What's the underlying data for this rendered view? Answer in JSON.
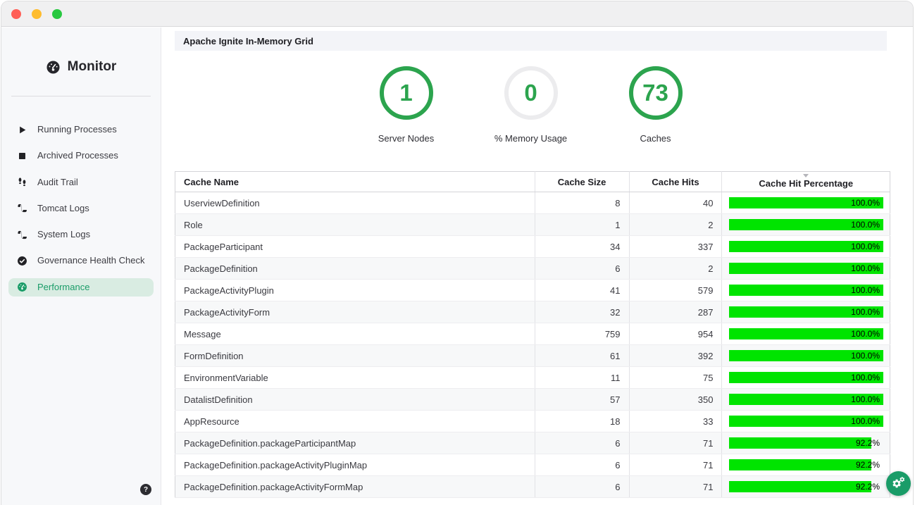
{
  "window": {
    "buttons": {
      "close": "close",
      "minimize": "minimize",
      "zoom": "zoom"
    }
  },
  "sidebar": {
    "brand": "Monitor",
    "brand_icon": "gauge-icon",
    "items": [
      {
        "label": "Running Processes",
        "icon": "play-icon",
        "selected": false
      },
      {
        "label": "Archived Processes",
        "icon": "stop-icon",
        "selected": false
      },
      {
        "label": "Audit Trail",
        "icon": "footprints-icon",
        "selected": false
      },
      {
        "label": "Tomcat Logs",
        "icon": "scroll-icon",
        "selected": false
      },
      {
        "label": "System Logs",
        "icon": "scroll-icon",
        "selected": false
      },
      {
        "label": "Governance Health Check",
        "icon": "check-circle-icon",
        "selected": false
      },
      {
        "label": "Performance",
        "icon": "gauge-icon",
        "selected": true
      }
    ],
    "help_label": "?"
  },
  "main": {
    "section_title": "Apache Ignite In-Memory Grid",
    "stats": [
      {
        "value": "1",
        "label": "Server Nodes",
        "ring": "green"
      },
      {
        "value": "0",
        "label": "% Memory Usage",
        "ring": "gray"
      },
      {
        "value": "73",
        "label": "Caches",
        "ring": "green"
      }
    ],
    "table": {
      "columns": [
        "Cache Name",
        "Cache Size",
        "Cache Hits",
        "Cache Hit Percentage"
      ],
      "sorted_column_index": 3,
      "sort_direction": "desc",
      "rows": [
        {
          "name": "UserviewDefinition",
          "size": "8",
          "hits": "40",
          "pct_label": "100.0%",
          "pct_value": 100.0
        },
        {
          "name": "Role",
          "size": "1",
          "hits": "2",
          "pct_label": "100.0%",
          "pct_value": 100.0
        },
        {
          "name": "PackageParticipant",
          "size": "34",
          "hits": "337",
          "pct_label": "100.0%",
          "pct_value": 100.0
        },
        {
          "name": "PackageDefinition",
          "size": "6",
          "hits": "2",
          "pct_label": "100.0%",
          "pct_value": 100.0
        },
        {
          "name": "PackageActivityPlugin",
          "size": "41",
          "hits": "579",
          "pct_label": "100.0%",
          "pct_value": 100.0
        },
        {
          "name": "PackageActivityForm",
          "size": "32",
          "hits": "287",
          "pct_label": "100.0%",
          "pct_value": 100.0
        },
        {
          "name": "Message",
          "size": "759",
          "hits": "954",
          "pct_label": "100.0%",
          "pct_value": 100.0
        },
        {
          "name": "FormDefinition",
          "size": "61",
          "hits": "392",
          "pct_label": "100.0%",
          "pct_value": 100.0
        },
        {
          "name": "EnvironmentVariable",
          "size": "11",
          "hits": "75",
          "pct_label": "100.0%",
          "pct_value": 100.0
        },
        {
          "name": "DatalistDefinition",
          "size": "57",
          "hits": "350",
          "pct_label": "100.0%",
          "pct_value": 100.0
        },
        {
          "name": "AppResource",
          "size": "18",
          "hits": "33",
          "pct_label": "100.0%",
          "pct_value": 100.0
        },
        {
          "name": "PackageDefinition.packageParticipantMap",
          "size": "6",
          "hits": "71",
          "pct_label": "92.2%",
          "pct_value": 92.2
        },
        {
          "name": "PackageDefinition.packageActivityPluginMap",
          "size": "6",
          "hits": "71",
          "pct_label": "92.2%",
          "pct_value": 92.2
        },
        {
          "name": "PackageDefinition.packageActivityFormMap",
          "size": "6",
          "hits": "71",
          "pct_label": "92.2%",
          "pct_value": 92.2
        }
      ]
    },
    "fab_icon": "gears-icon"
  },
  "colors": {
    "accent_green": "#2ca44e",
    "bar_green": "#00e400",
    "selected_item_bg": "#d9ece2",
    "selected_item_text": "#1a9c68",
    "fab_green": "#1a9c68",
    "traffic_red": "#ff5f57",
    "traffic_yellow": "#febc2e",
    "traffic_green": "#28c840"
  }
}
